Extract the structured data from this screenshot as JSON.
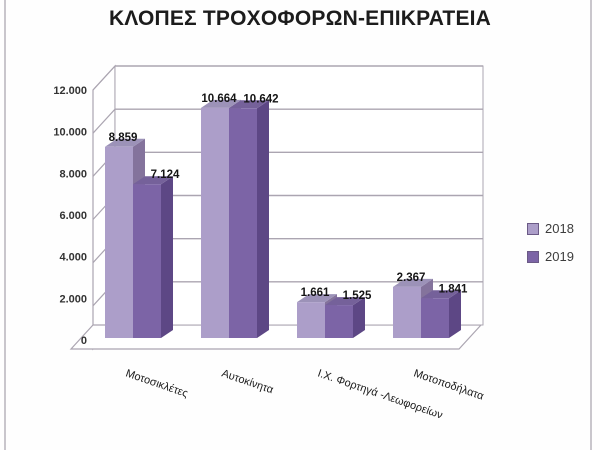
{
  "title": "ΚΛΟΠΕΣ ΤΡΟΧΟΦΟΡΩΝ-ΕΠΙΚΡΑΤΕΙΑ",
  "chart_data": {
    "type": "bar",
    "projection": "3d-clustered-column",
    "categories": [
      "Μοτοσικλέτες",
      "Αυτοκίνητα",
      "Ι.Χ. Φορτηγά -Λεωφορείων",
      "Μοτοποδήλατα"
    ],
    "series": [
      {
        "name": "2018",
        "values": [
          8859,
          10664,
          1661,
          2367
        ],
        "labels": [
          "8.859",
          "10.664",
          "1.661",
          "2.367"
        ],
        "color": {
          "front": "#AC9EC9",
          "top": "#9C92B8",
          "side": "#84739C"
        }
      },
      {
        "name": "2019",
        "values": [
          7124,
          10642,
          1525,
          1841
        ],
        "labels": [
          "7.124",
          "10.642",
          "1.525",
          "1.841"
        ],
        "color": {
          "front": "#7C64A6",
          "top": "#75619A",
          "side": "#5D4785"
        }
      }
    ],
    "y_ticks": [
      "12.000",
      "10.000",
      "8.000",
      "6.000",
      "4.000",
      "2.000",
      "0"
    ],
    "ylim": [
      0,
      12000
    ],
    "y_step": 2000,
    "grid": true,
    "legend_position": "right",
    "grid_color": "#ABA5B1",
    "wall_fill": "#FFFFFF",
    "label_color": "#141414",
    "tick_color": "#333333",
    "category_color": "#1a1a1a"
  }
}
